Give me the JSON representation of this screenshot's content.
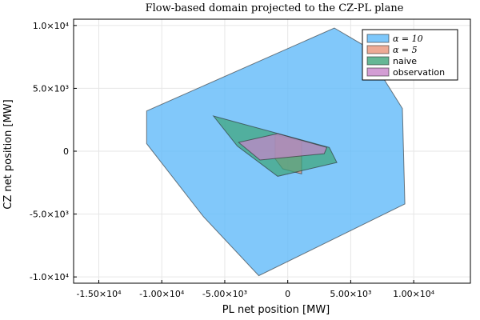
{
  "chart_data": {
    "type": "area",
    "title": "Flow-based domain projected to the CZ-PL plane",
    "xlabel": "PL net position [MW]",
    "ylabel": "CZ net position [MW]",
    "xlim": [
      -17000,
      14500
    ],
    "ylim": [
      -10500,
      10500
    ],
    "grid": true,
    "legend_position": "top-right",
    "x_ticks": [
      {
        "value": -15000,
        "label": "-1.50×10⁴"
      },
      {
        "value": -10000,
        "label": "-1.00×10⁴"
      },
      {
        "value": -5000,
        "label": "-5.00×10³"
      },
      {
        "value": 0,
        "label": "0"
      },
      {
        "value": 5000,
        "label": "5.00×10³"
      },
      {
        "value": 10000,
        "label": "1.00×10⁴"
      }
    ],
    "y_ticks": [
      {
        "value": 10000,
        "label": "1.0×10⁴"
      },
      {
        "value": 5000,
        "label": "5.0×10³"
      },
      {
        "value": 0,
        "label": "0"
      },
      {
        "value": -5000,
        "label": "-5.0×10³"
      },
      {
        "value": -10000,
        "label": "-1.0×10⁴"
      }
    ],
    "series": [
      {
        "name": "α = 10",
        "color": "#5db9f9",
        "points": [
          [
            3700,
            9800
          ],
          [
            5900,
            8500
          ],
          [
            9100,
            3400
          ],
          [
            9300,
            -4200
          ],
          [
            -2300,
            -9900
          ],
          [
            -6700,
            -5200
          ],
          [
            -11200,
            600
          ],
          [
            -11200,
            3200
          ]
        ]
      },
      {
        "name": "α = 5",
        "color": "#e8957a",
        "points": [
          [
            -1000,
            1300
          ],
          [
            1100,
            800
          ],
          [
            1100,
            -1800
          ],
          [
            -400,
            -1400
          ],
          [
            -1000,
            -600
          ]
        ]
      },
      {
        "name": "naive",
        "color": "#3fa57a",
        "points": [
          [
            -5900,
            2800
          ],
          [
            3300,
            300
          ],
          [
            3900,
            -900
          ],
          [
            -800,
            -2000
          ],
          [
            -4000,
            400
          ]
        ]
      },
      {
        "name": "observation",
        "color": "#c885c9",
        "points": [
          [
            -800,
            1400
          ],
          [
            3100,
            300
          ],
          [
            2900,
            -200
          ],
          [
            -2200,
            -700
          ],
          [
            -3900,
            700
          ]
        ]
      }
    ],
    "legend": {
      "entries": [
        "α = 10",
        "α = 5",
        "naive",
        "observation"
      ]
    }
  }
}
